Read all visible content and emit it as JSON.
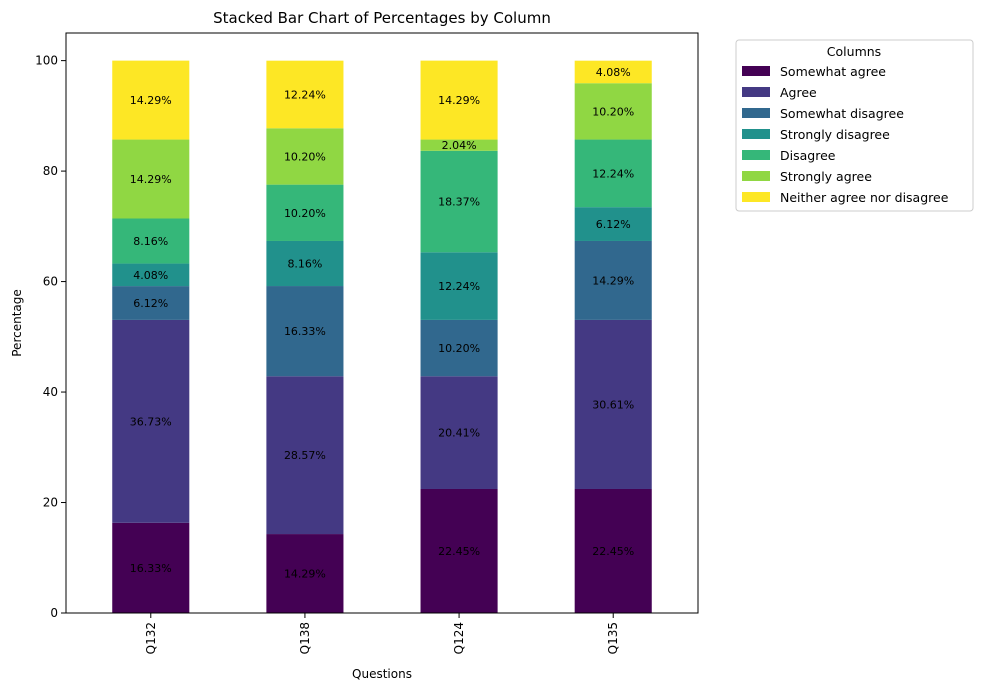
{
  "chart_data": {
    "type": "bar",
    "stacked": true,
    "title": "Stacked Bar Chart of Percentages by Column",
    "xlabel": "Questions",
    "ylabel": "Percentage",
    "ylim": [
      0,
      105
    ],
    "yticks": [
      0,
      20,
      40,
      60,
      80,
      100
    ],
    "grid": false,
    "legend": {
      "title": "Columns",
      "placement": "outside-top-right"
    },
    "categories": [
      "Q132",
      "Q138",
      "Q124",
      "Q135"
    ],
    "series": [
      {
        "name": "Somewhat agree",
        "color": "#440154",
        "values": [
          16.33,
          14.29,
          22.45,
          22.45
        ],
        "labels": [
          "16.33%",
          "14.29%",
          "22.45%",
          "22.45%"
        ]
      },
      {
        "name": "Agree",
        "color": "#443983",
        "values": [
          36.73,
          28.57,
          20.41,
          30.61
        ],
        "labels": [
          "36.73%",
          "28.57%",
          "20.41%",
          "30.61%"
        ]
      },
      {
        "name": "Somewhat disagree",
        "color": "#31688e",
        "values": [
          6.12,
          16.33,
          10.2,
          14.29
        ],
        "labels": [
          "6.12%",
          "16.33%",
          "10.20%",
          "14.29%"
        ]
      },
      {
        "name": "Strongly disagree",
        "color": "#21918c",
        "values": [
          4.08,
          8.16,
          12.24,
          6.12
        ],
        "labels": [
          "4.08%",
          "8.16%",
          "12.24%",
          "6.12%"
        ]
      },
      {
        "name": "Disagree",
        "color": "#35b779",
        "values": [
          8.16,
          10.2,
          18.37,
          12.24
        ],
        "labels": [
          "8.16%",
          "10.20%",
          "18.37%",
          "12.24%"
        ]
      },
      {
        "name": "Strongly agree",
        "color": "#90d743",
        "values": [
          14.29,
          10.2,
          2.04,
          10.2
        ],
        "labels": [
          "14.29%",
          "10.20%",
          "2.04%",
          "10.20%"
        ]
      },
      {
        "name": "Neither agree nor disagree",
        "color": "#fde725",
        "values": [
          14.29,
          12.24,
          14.29,
          4.08
        ],
        "labels": [
          "14.29%",
          "12.24%",
          "14.29%",
          "4.08%"
        ]
      }
    ]
  }
}
